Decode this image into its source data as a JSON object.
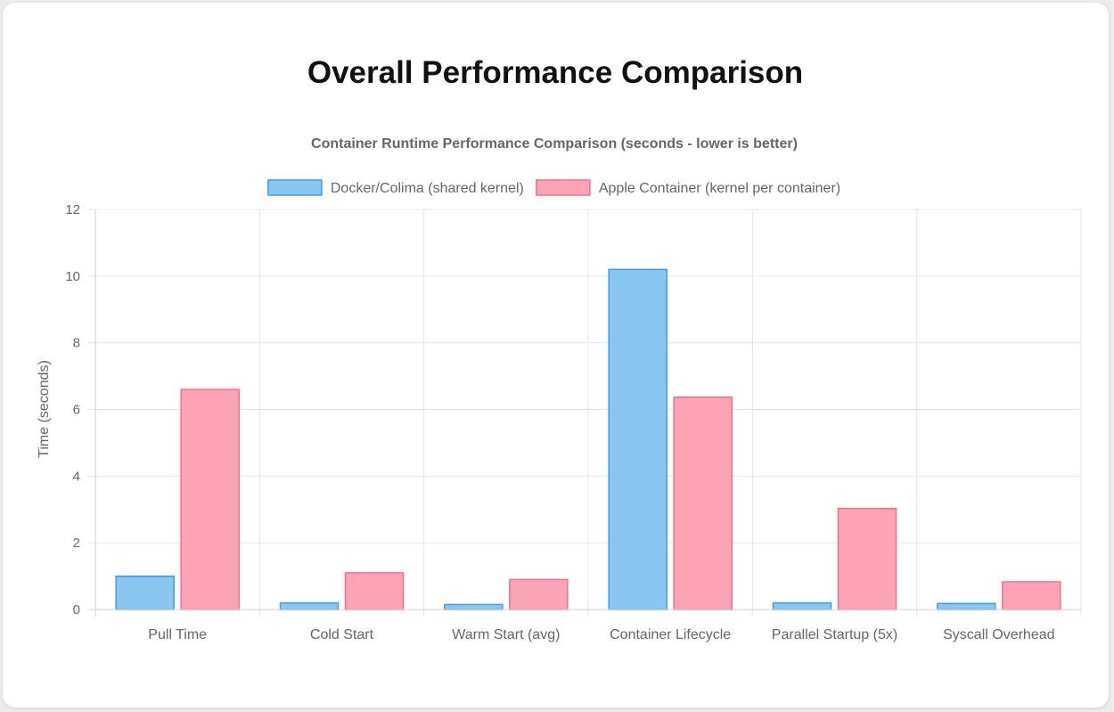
{
  "page": {
    "title": "Overall Performance Comparison"
  },
  "chart_data": {
    "type": "bar",
    "title": "Container Runtime Performance Comparison (seconds - lower is better)",
    "xlabel": "",
    "ylabel": "Time (seconds)",
    "ylim": [
      0,
      12
    ],
    "yticks": [
      "0",
      "2",
      "4",
      "6",
      "8",
      "10",
      "12"
    ],
    "grid": true,
    "legend_position": "top",
    "categories": [
      "Pull Time",
      "Cold Start",
      "Warm Start (avg)",
      "Container Lifecycle",
      "Parallel Startup (5x)",
      "Syscall Overhead"
    ],
    "series": [
      {
        "name": "Docker/Colima (shared kernel)",
        "fill": "#89c7f2",
        "stroke": "#3ba0e3",
        "values": [
          1.0,
          0.2,
          0.15,
          10.2,
          0.2,
          0.18
        ]
      },
      {
        "name": "Apple Container (kernel per container)",
        "fill": "#fca4b6",
        "stroke": "#f0708a",
        "values": [
          6.6,
          1.1,
          0.9,
          6.37,
          3.03,
          0.83
        ]
      }
    ]
  }
}
